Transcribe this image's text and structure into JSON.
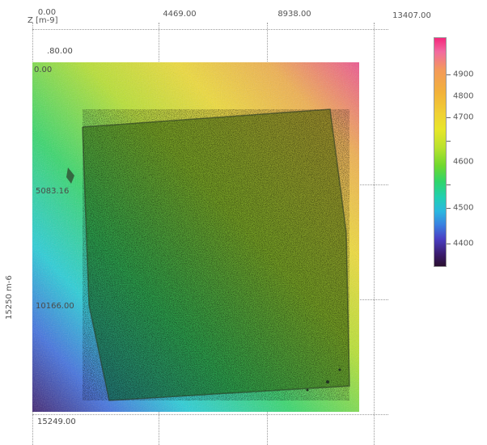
{
  "top_axis": {
    "z_label": "Z [m-9]",
    "ticks": [
      "0.00",
      "4469.00",
      "8938.00",
      "13407.00"
    ]
  },
  "y_labels": {
    "top": ".80.00",
    "zero": "0.00",
    "mid1": "5083.16",
    "mid2": "10166.00",
    "bottom": "15249.00"
  },
  "side_label": "15250 m-6",
  "colorbar": {
    "labels": [
      "4900",
      "4800",
      "4700",
      "4600",
      "4500",
      "4400"
    ]
  },
  "image_description": "Topographic height map of a rough square sample with color scale"
}
